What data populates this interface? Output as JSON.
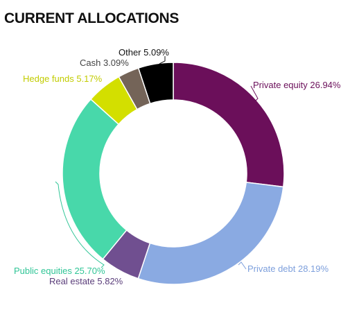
{
  "chart_data": {
    "type": "pie",
    "variant": "donut",
    "title": "CURRENT ALLOCATIONS",
    "slices": [
      {
        "label": "Private equity",
        "value": 26.94,
        "display": "Private equity 26.94%",
        "color": "#6b0f5a",
        "label_color": "#6b0f5a"
      },
      {
        "label": "Private debt",
        "value": 28.19,
        "display": "Private debt 28.19%",
        "color": "#8aaae2",
        "label_color": "#7d9fdc"
      },
      {
        "label": "Real estate",
        "value": 5.82,
        "display": "Real estate 5.82%",
        "color": "#704f90",
        "label_color": "#5a3d7a"
      },
      {
        "label": "Public equities",
        "value": 25.7,
        "display": "Public equities 25.70%",
        "color": "#48d8aa",
        "label_color": "#2fc596"
      },
      {
        "label": "Hedge funds",
        "value": 5.17,
        "display": "Hedge funds 5.17%",
        "color": "#d3df00",
        "label_color": "#c2cc00"
      },
      {
        "label": "Cash",
        "value": 3.09,
        "display": "Cash 3.09%",
        "color": "#746458",
        "label_color": "#444444"
      },
      {
        "label": "Other",
        "value": 5.09,
        "display": "Other 5.09%",
        "color": "#000000",
        "label_color": "#111111"
      }
    ],
    "start_angle_deg": 0,
    "direction": "clockwise",
    "legend": "none"
  }
}
